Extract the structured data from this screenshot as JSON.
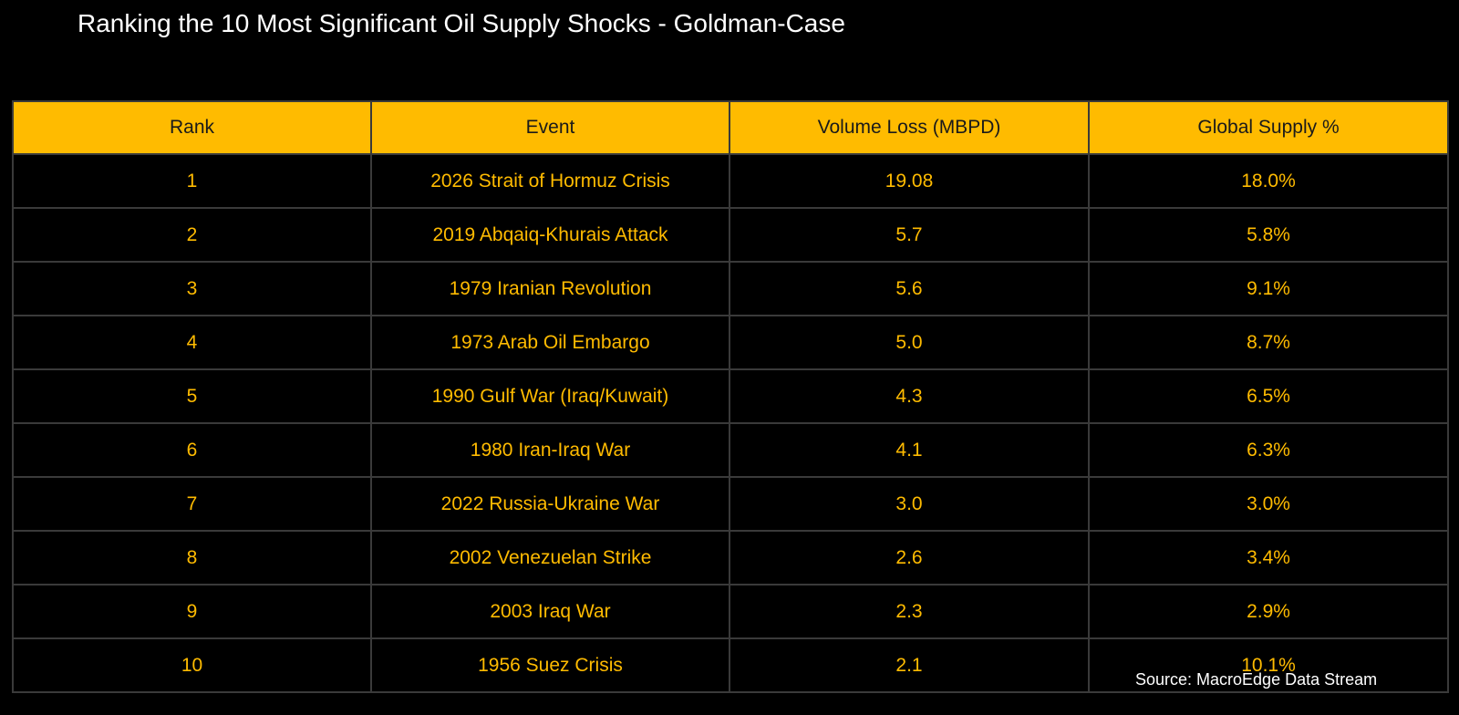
{
  "colors": {
    "background": "#000000",
    "header_fill": "#FFBB00",
    "header_text": "#1a1a1a",
    "cell_text": "#FFBB00",
    "grid_line": "#3a3a3a",
    "title_text": "#ffffff"
  },
  "chart_data": {
    "type": "table",
    "title": "Ranking the 10 Most Significant Oil Supply Shocks - Goldman-Case",
    "columns": [
      "Rank",
      "Event",
      "Volume Loss (MBPD)",
      "Global Supply %"
    ],
    "rows": [
      [
        "1",
        "2026 Strait of Hormuz Crisis",
        "19.08",
        "18.0%"
      ],
      [
        "2",
        "2019 Abqaiq-Khurais Attack",
        "5.7",
        "5.8%"
      ],
      [
        "3",
        "1979 Iranian Revolution",
        "5.6",
        "9.1%"
      ],
      [
        "4",
        "1973 Arab Oil Embargo",
        "5.0",
        "8.7%"
      ],
      [
        "5",
        "1990 Gulf War (Iraq/Kuwait)",
        "4.3",
        "6.5%"
      ],
      [
        "6",
        "1980 Iran-Iraq War",
        "4.1",
        "6.3%"
      ],
      [
        "7",
        "2022 Russia-Ukraine War",
        "3.0",
        "3.0%"
      ],
      [
        "8",
        "2002 Venezuelan Strike",
        "2.6",
        "3.4%"
      ],
      [
        "9",
        "2003 Iraq War",
        "2.3",
        "2.9%"
      ],
      [
        "10",
        "1956 Suez Crisis",
        "2.1",
        "10.1%"
      ]
    ],
    "source": "Source: MacroEdge Data Stream"
  }
}
